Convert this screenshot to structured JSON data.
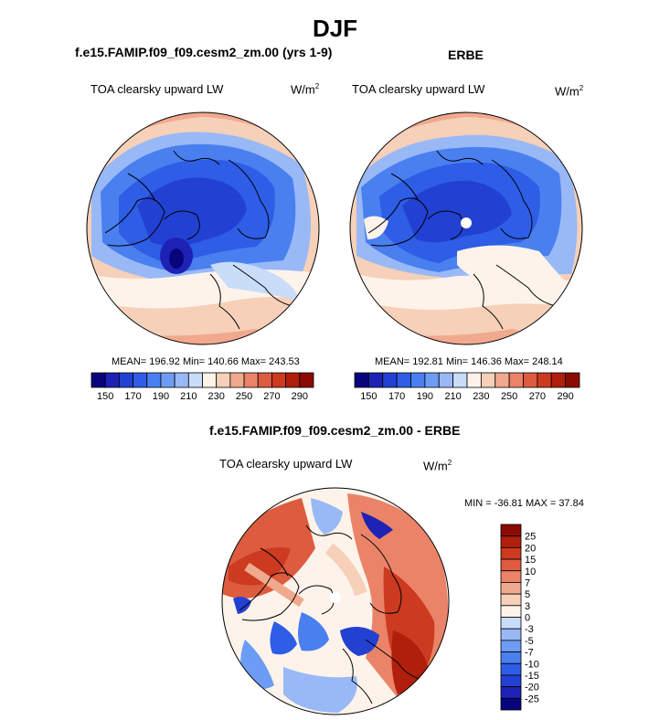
{
  "page_title": "DJF",
  "panels": {
    "model": {
      "title": "f.e15.FAMIP.f09_f09.cesm2_zm.00 (yrs 1-9)",
      "variable": "TOA clearsky upward LW",
      "units": "W/m",
      "units_sup": "2",
      "stats": "MEAN= 196.92  Min= 140.66  Max= 243.53"
    },
    "obs": {
      "title": "ERBE",
      "variable": "TOA clearsky upward LW",
      "units": "W/m",
      "units_sup": "2",
      "stats": "MEAN= 192.81  Min= 146.36  Max= 248.14"
    },
    "diff": {
      "title": "f.e15.FAMIP.f09_f09.cesm2_zm.00 - ERBE",
      "variable": "TOA clearsky upward LW",
      "units": "W/m",
      "units_sup": "2",
      "stats": "MIN = -36.81  MAX =  37.84"
    }
  },
  "chart_data": [
    {
      "type": "heatmap",
      "projection": "north-polar-stereographic",
      "title": "f.e15.FAMIP.f09_f09.cesm2_zm.00 (yrs 1-9)",
      "variable": "TOA clearsky upward LW",
      "units": "W/m^2",
      "mean": 196.92,
      "min": 140.66,
      "max": 243.53,
      "colorbar": {
        "orientation": "horizontal",
        "levels": [
          140,
          150,
          160,
          170,
          180,
          190,
          200,
          210,
          220,
          230,
          240,
          250,
          260,
          270,
          280,
          290,
          300
        ],
        "tick_labels": [
          "150",
          "170",
          "190",
          "210",
          "230",
          "250",
          "270",
          "290"
        ],
        "colors": [
          "#08047b",
          "#1e22b4",
          "#2241d2",
          "#2e5de6",
          "#4a7ff0",
          "#6d9cf4",
          "#98b9f6",
          "#c9dcf8",
          "#fdf3ea",
          "#f6d0b8",
          "#f1a98e",
          "#ea8368",
          "#dd5b3f",
          "#cc3a1f",
          "#b01e0c",
          "#8a0b02"
        ]
      }
    },
    {
      "type": "heatmap",
      "projection": "north-polar-stereographic",
      "title": "ERBE",
      "variable": "TOA clearsky upward LW",
      "units": "W/m^2",
      "mean": 192.81,
      "min": 146.36,
      "max": 248.14,
      "colorbar": {
        "orientation": "horizontal",
        "levels": [
          140,
          150,
          160,
          170,
          180,
          190,
          200,
          210,
          220,
          230,
          240,
          250,
          260,
          270,
          280,
          290,
          300
        ],
        "tick_labels": [
          "150",
          "170",
          "190",
          "210",
          "230",
          "250",
          "270",
          "290"
        ],
        "colors": [
          "#08047b",
          "#1e22b4",
          "#2241d2",
          "#2e5de6",
          "#4a7ff0",
          "#6d9cf4",
          "#98b9f6",
          "#c9dcf8",
          "#fdf3ea",
          "#f6d0b8",
          "#f1a98e",
          "#ea8368",
          "#dd5b3f",
          "#cc3a1f",
          "#b01e0c",
          "#8a0b02"
        ]
      }
    },
    {
      "type": "heatmap",
      "projection": "north-polar-stereographic",
      "title": "f.e15.FAMIP.f09_f09.cesm2_zm.00 - ERBE",
      "variable": "TOA clearsky upward LW",
      "units": "W/m^2",
      "min": -36.81,
      "max": 37.84,
      "colorbar": {
        "orientation": "vertical",
        "tick_labels": [
          "25",
          "20",
          "15",
          "10",
          "7",
          "5",
          "3",
          "0",
          "-3",
          "-5",
          "-7",
          "-10",
          "-15",
          "-20",
          "-25"
        ],
        "colors": [
          "#8a0b02",
          "#b01e0c",
          "#cc3a1f",
          "#dd5b3f",
          "#ea8368",
          "#f1a98e",
          "#f6d0b8",
          "#fdf3ea",
          "#c9dcf8",
          "#98b9f6",
          "#6d9cf4",
          "#4a7ff0",
          "#2e5de6",
          "#2241d2",
          "#1e22b4",
          "#08047b"
        ]
      }
    }
  ]
}
